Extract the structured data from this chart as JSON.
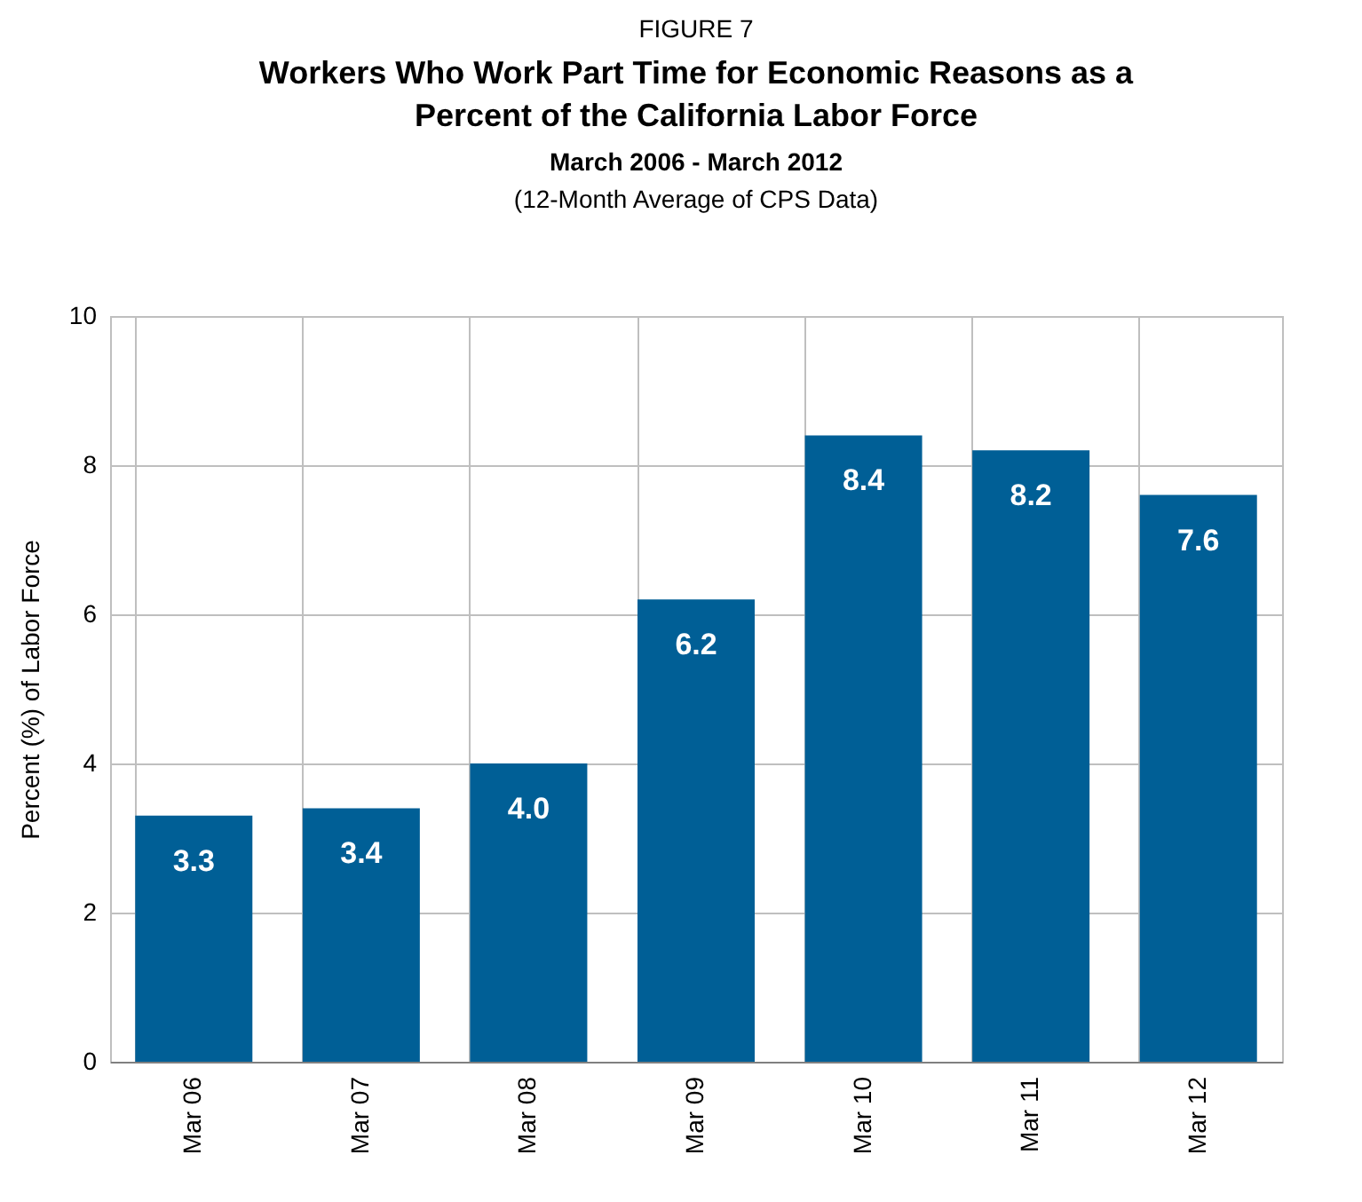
{
  "chart_data": {
    "type": "bar",
    "title": "Workers Who Work Part Time for Economic Reasons as a Percent of the California Labor Force",
    "subtitle": "March 2006 - March 2012",
    "annotations": [
      "FIGURE 7",
      "(12-Month Average of CPS Data)"
    ],
    "ylabel": "Percent (%) of Labor Force",
    "categories": [
      "Mar 06",
      "Mar 07",
      "Mar 08",
      "Mar 09",
      "Mar 10",
      "Mar 11",
      "Mar 12"
    ],
    "values": [
      3.3,
      3.4,
      4.0,
      6.2,
      8.4,
      8.2,
      7.6
    ],
    "value_labels": [
      "3.3",
      "3.4",
      "4.0",
      "6.2",
      "8.4",
      "8.2",
      "7.6"
    ],
    "color": "#005f96",
    "ylim": [
      0,
      10
    ],
    "yticks": [
      0,
      2,
      4,
      6,
      8,
      10
    ],
    "grid": true
  }
}
